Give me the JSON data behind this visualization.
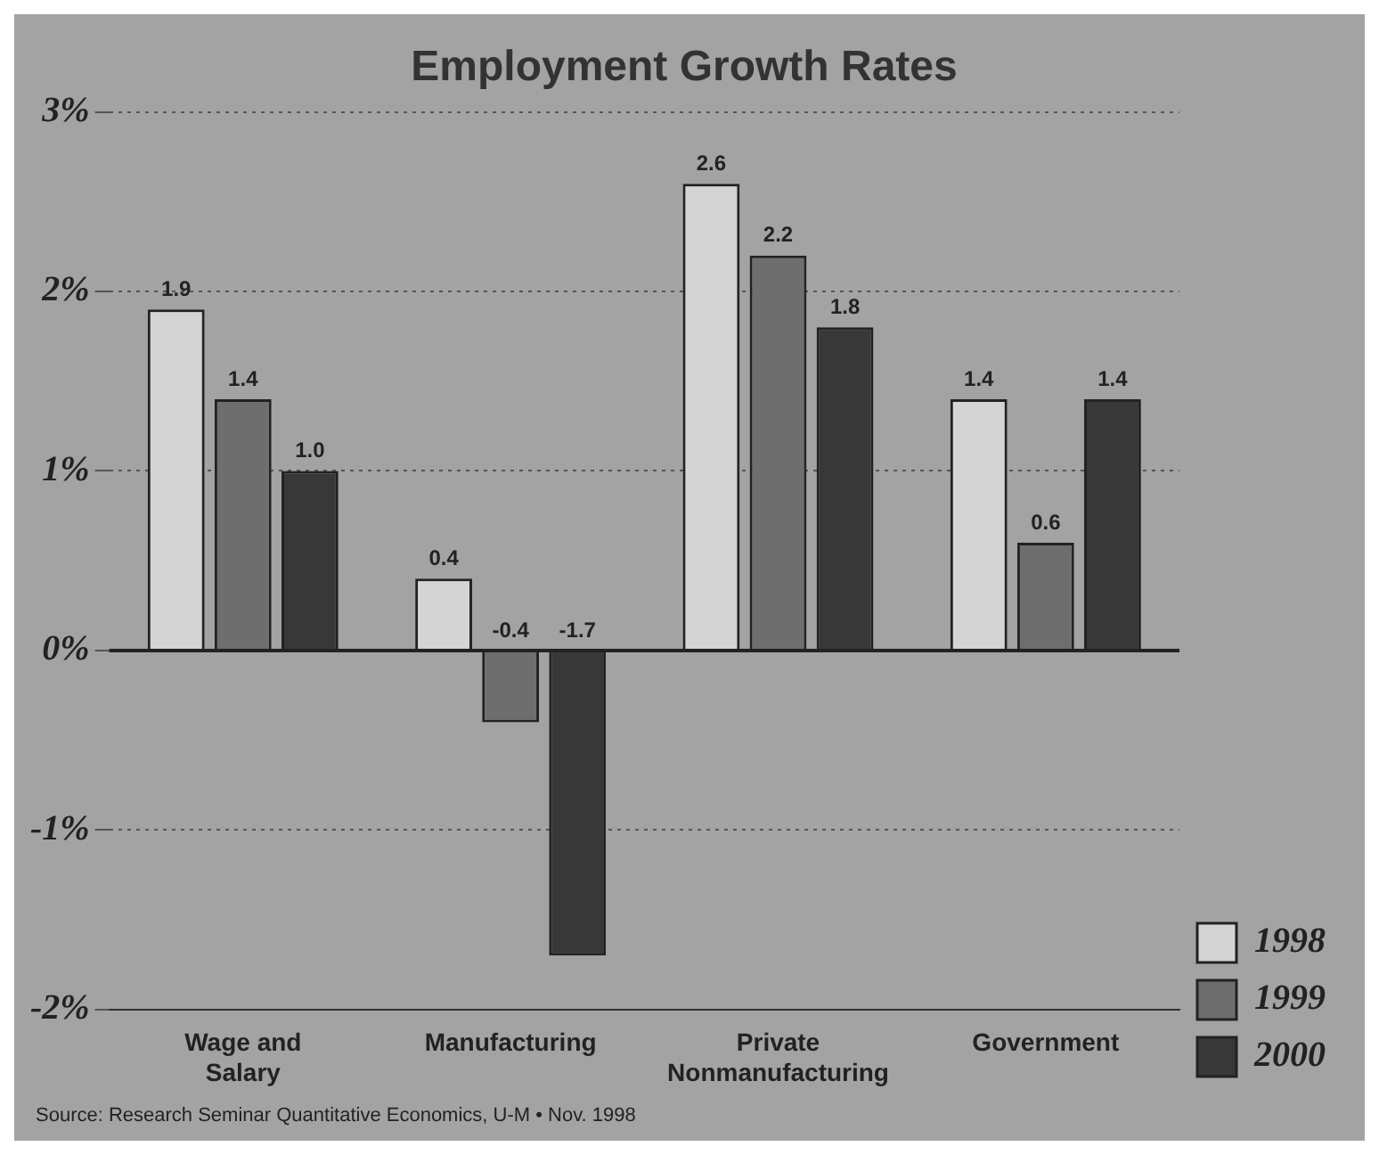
{
  "chart_data": {
    "type": "bar",
    "title": "Employment Growth Rates",
    "categories": [
      "Wage and Salary",
      "Manufacturing",
      "Private Nonmanufacturing",
      "Government"
    ],
    "series": [
      {
        "name": "1998",
        "color": "#d4d4d4",
        "values": [
          1.9,
          0.4,
          2.6,
          1.4
        ],
        "value_labels": [
          "1.9",
          "0.4",
          "2.6",
          "1.4"
        ]
      },
      {
        "name": "1999",
        "color": "#6e6e6e",
        "values": [
          1.4,
          -0.4,
          2.2,
          0.6
        ],
        "value_labels": [
          "1.4",
          "-0.4",
          "2.2",
          "0.6"
        ]
      },
      {
        "name": "2000",
        "color": "#383838",
        "values": [
          1.0,
          -1.7,
          1.8,
          1.4
        ],
        "value_labels": [
          "1.0",
          "-1.7",
          "1.8",
          "1.4"
        ]
      }
    ],
    "ylim": [
      -2,
      3
    ],
    "yticks": [
      {
        "value": -2,
        "label": "-2%"
      },
      {
        "value": -1,
        "label": "-1%"
      },
      {
        "value": 0,
        "label": "0%"
      },
      {
        "value": 1,
        "label": "1%"
      },
      {
        "value": 2,
        "label": "2%"
      },
      {
        "value": 3,
        "label": "3%"
      }
    ],
    "grid": "y",
    "legend": "bottom right",
    "ref_lines": [
      {
        "axis": "y",
        "value": 0,
        "color": "#222222"
      }
    ],
    "annotations": [
      "Source: Research Seminar Quantitative Economics, U-M • Nov. 1998"
    ]
  }
}
